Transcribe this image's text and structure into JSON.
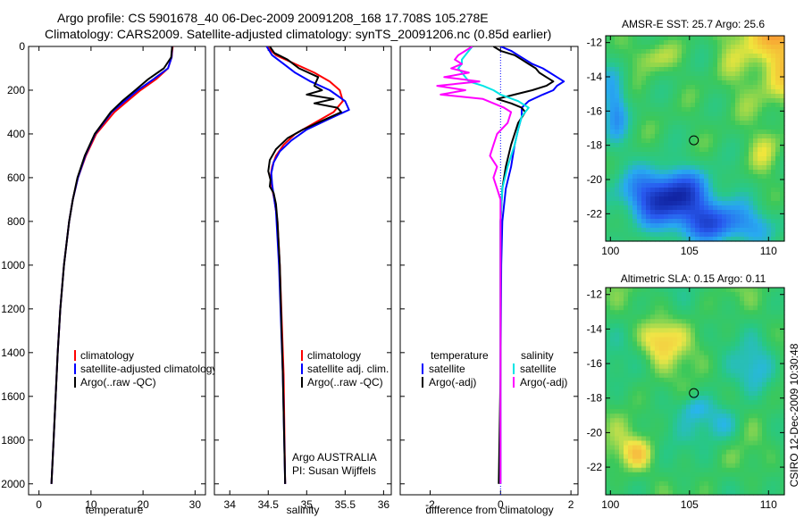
{
  "header": {
    "line1": "Argo profile: CS 5901678_40 06-Dec-2009 20091208_168 17.708S 105.278E",
    "line2": "Climatology: CARS2009. Satellite-adjusted climatology: synTS_20091206.nc (0.85d earlier)"
  },
  "colors": {
    "climatology": "#ff0000",
    "satellite": "#0000ff",
    "argo": "#000000",
    "sat_salinity": "#00e5e5",
    "argo_salinity": "#ff00ff",
    "zero_line": "#0000ff"
  },
  "chart_data": [
    {
      "id": "temperature",
      "type": "line",
      "xlabel": "temperature",
      "xlim": [
        -2,
        32
      ],
      "xticks": [
        "0",
        "10",
        "20",
        "30"
      ],
      "xtick_values": [
        0,
        10,
        20,
        30
      ],
      "ylim": [
        0,
        2050
      ],
      "yticks": [
        "0",
        "200",
        "400",
        "600",
        "800",
        "1000",
        "1200",
        "1400",
        "1600",
        "1800",
        "2000"
      ],
      "ytick_values": [
        0,
        200,
        400,
        600,
        800,
        1000,
        1200,
        1400,
        1600,
        1800,
        2000
      ],
      "legend": [
        "climatology",
        "satellite-adjusted climatology",
        "Argo(..raw -QC)"
      ],
      "series": [
        {
          "name": "climatology",
          "color": "#ff0000",
          "depth": [
            0,
            50,
            100,
            150,
            200,
            250,
            300,
            400,
            500,
            600,
            700,
            800,
            1000,
            1200,
            1400,
            1600,
            1800,
            2000
          ],
          "values": [
            25.7,
            25.5,
            24.8,
            22.5,
            19.5,
            17.0,
            14.5,
            11.0,
            9.0,
            7.5,
            6.5,
            5.8,
            4.8,
            4.1,
            3.6,
            3.2,
            2.8,
            2.4
          ]
        },
        {
          "name": "satellite",
          "color": "#0000ff",
          "depth": [
            0,
            50,
            100,
            150,
            200,
            250,
            300,
            400,
            500,
            600,
            700,
            800,
            1000,
            1200,
            1400,
            1600,
            1800,
            2000
          ],
          "values": [
            25.6,
            25.5,
            24.8,
            22.0,
            19.0,
            16.5,
            14.0,
            10.8,
            8.9,
            7.5,
            6.5,
            5.8,
            4.8,
            4.1,
            3.6,
            3.2,
            2.8,
            2.4
          ]
        },
        {
          "name": "Argo",
          "color": "#000000",
          "depth": [
            0,
            50,
            100,
            150,
            200,
            250,
            300,
            400,
            500,
            600,
            700,
            800,
            1000,
            1200,
            1400,
            1600,
            1800,
            2000
          ],
          "values": [
            25.6,
            25.4,
            24.0,
            21.0,
            18.5,
            16.0,
            13.8,
            10.7,
            8.8,
            7.4,
            6.5,
            5.8,
            4.8,
            4.1,
            3.6,
            3.2,
            2.8,
            2.4
          ]
        }
      ]
    },
    {
      "id": "salinity",
      "type": "line",
      "xlabel": "salinity",
      "xlim": [
        33.8,
        36.1
      ],
      "xticks": [
        "34",
        "34.5",
        "35",
        "35.5",
        "36"
      ],
      "xtick_values": [
        34,
        34.5,
        35,
        35.5,
        36
      ],
      "ylim": [
        0,
        2050
      ],
      "legend": [
        "climatology",
        "satellite adj. clim.",
        "Argo(..raw -QC)"
      ],
      "annotation": [
        "Argo AUSTRALIA",
        "PI: Susan Wijffels"
      ],
      "series": [
        {
          "name": "climatology",
          "color": "#ff0000",
          "depth": [
            0,
            40,
            80,
            120,
            160,
            200,
            250,
            300,
            350,
            400,
            450,
            500,
            550,
            600,
            650,
            700,
            800,
            1000,
            1500,
            2000
          ],
          "values": [
            34.48,
            34.6,
            34.85,
            35.1,
            35.3,
            35.43,
            35.47,
            35.35,
            35.1,
            34.85,
            34.7,
            34.6,
            34.55,
            34.53,
            34.55,
            34.58,
            34.62,
            34.65,
            34.7,
            34.72
          ]
        },
        {
          "name": "satellite",
          "color": "#0000ff",
          "depth": [
            0,
            40,
            80,
            120,
            160,
            200,
            250,
            290,
            330,
            380,
            430,
            480,
            530,
            580,
            630,
            680,
            750,
            1000,
            1500,
            2000
          ],
          "values": [
            34.48,
            34.55,
            34.7,
            34.85,
            35.05,
            35.3,
            35.5,
            35.55,
            35.3,
            35.0,
            34.8,
            34.65,
            34.57,
            34.54,
            34.55,
            34.57,
            34.6,
            34.64,
            34.69,
            34.72
          ]
        },
        {
          "name": "Argo",
          "color": "#000000",
          "depth": [
            0,
            30,
            60,
            100,
            140,
            180,
            200,
            220,
            240,
            260,
            280,
            300,
            340,
            380,
            420,
            470,
            520,
            570,
            610,
            640,
            670,
            720,
            800,
            1000,
            1500,
            2000
          ],
          "values": [
            34.52,
            34.58,
            34.75,
            34.9,
            35.15,
            35.1,
            35.2,
            35.0,
            35.35,
            35.1,
            35.4,
            35.45,
            35.2,
            34.95,
            34.75,
            34.6,
            34.52,
            34.5,
            34.53,
            34.52,
            34.57,
            34.6,
            34.62,
            34.65,
            34.69,
            34.72
          ]
        }
      ]
    },
    {
      "id": "difference",
      "type": "line",
      "xlabel": "difference from climatology",
      "xlim": [
        -2.85,
        2.2
      ],
      "xticks": [
        "-2",
        "0",
        "2"
      ],
      "xtick_values": [
        -2,
        0,
        2
      ],
      "ylim": [
        0,
        2050
      ],
      "legend_headers": [
        "temperature",
        "salinity"
      ],
      "legend": [
        "satellite",
        "Argo(-adj)",
        "satellite",
        "Argo(-adj)"
      ],
      "series": [
        {
          "name": "temperature satellite",
          "color": "#0000ff",
          "depth": [
            0,
            20,
            40,
            60,
            80,
            100,
            120,
            140,
            160,
            180,
            200,
            220,
            250,
            280,
            320,
            380,
            450,
            550,
            650,
            800,
            1000,
            1500,
            2000
          ],
          "values": [
            0.0,
            0.3,
            0.5,
            0.7,
            0.9,
            1.2,
            1.4,
            1.6,
            1.8,
            1.6,
            1.5,
            1.2,
            0.8,
            0.6,
            0.6,
            0.5,
            0.4,
            0.3,
            0.15,
            0.05,
            0.02,
            0.0,
            0.0
          ]
        },
        {
          "name": "temperature Argo",
          "color": "#000000",
          "depth": [
            0,
            20,
            40,
            60,
            80,
            100,
            120,
            140,
            160,
            180,
            200,
            220,
            240,
            260,
            280,
            300,
            350,
            450,
            550,
            650,
            800,
            1000,
            1500,
            2000
          ],
          "values": [
            -0.2,
            0.0,
            0.4,
            0.6,
            0.8,
            1.0,
            1.1,
            1.3,
            1.5,
            1.3,
            0.9,
            0.4,
            -0.1,
            0.3,
            0.6,
            0.7,
            0.5,
            0.3,
            0.15,
            0.05,
            0.0,
            0.0,
            0.0,
            -0.05
          ]
        },
        {
          "name": "salinity satellite",
          "color": "#00e5e5",
          "depth": [
            0,
            20,
            40,
            60,
            80,
            100,
            120,
            140,
            160,
            180,
            200,
            220,
            250,
            280,
            320,
            380,
            450,
            550,
            650,
            800,
            1000,
            1500,
            2000
          ],
          "values": [
            -0.8,
            -0.9,
            -1.0,
            -1.1,
            -1.1,
            -1.2,
            -1.1,
            -1.0,
            -0.9,
            -0.5,
            -0.2,
            0.0,
            0.5,
            0.8,
            0.6,
            0.5,
            0.4,
            0.2,
            0.05,
            0.0,
            0.0,
            0.0,
            0.0
          ]
        },
        {
          "name": "salinity Argo",
          "color": "#ff00ff",
          "depth": [
            0,
            20,
            40,
            60,
            80,
            100,
            120,
            140,
            160,
            180,
            200,
            220,
            240,
            260,
            280,
            300,
            350,
            400,
            450,
            500,
            550,
            600,
            650,
            700,
            800,
            1000,
            1500,
            2000
          ],
          "values": [
            -0.8,
            -1.0,
            -1.2,
            -1.3,
            -1.1,
            -1.4,
            -0.9,
            -1.6,
            -0.6,
            -1.8,
            -1.0,
            -1.7,
            -0.5,
            -0.2,
            0.1,
            0.3,
            0.2,
            -0.1,
            -0.2,
            -0.3,
            -0.1,
            -0.2,
            -0.1,
            0.0,
            0.0,
            0.0,
            0.0,
            0.0
          ]
        }
      ]
    }
  ],
  "maps": [
    {
      "id": "sst-map",
      "title": "AMSR-E SST: 25.7 Argo: 25.6",
      "xticks": [
        "100",
        "105",
        "110"
      ],
      "xtick_values": [
        100,
        105,
        110
      ],
      "yticks": [
        "-12",
        "-14",
        "-16",
        "-18",
        "-20",
        "-22"
      ],
      "ytick_values": [
        -12,
        -14,
        -16,
        -18,
        -20,
        -22
      ],
      "lon_range": [
        99.7,
        111.0
      ],
      "lat_range": [
        -23.6,
        -11.6
      ],
      "marker": {
        "lon": 105.278,
        "lat": -17.708
      }
    },
    {
      "id": "sla-map",
      "title": "Altimetric SLA: 0.15 Argo: 0.11",
      "xticks": [
        "100",
        "105",
        "110"
      ],
      "xtick_values": [
        100,
        105,
        110
      ],
      "yticks": [
        "-12",
        "-14",
        "-16",
        "-18",
        "-20",
        "-22"
      ],
      "ytick_values": [
        -12,
        -14,
        -16,
        -18,
        -20,
        -22
      ],
      "lon_range": [
        99.7,
        111.0
      ],
      "lat_range": [
        -23.6,
        -11.6
      ],
      "marker": {
        "lon": 105.278,
        "lat": -17.708
      }
    }
  ],
  "footer_text": "CSIRO 12-Dec-2009 10:30:48"
}
